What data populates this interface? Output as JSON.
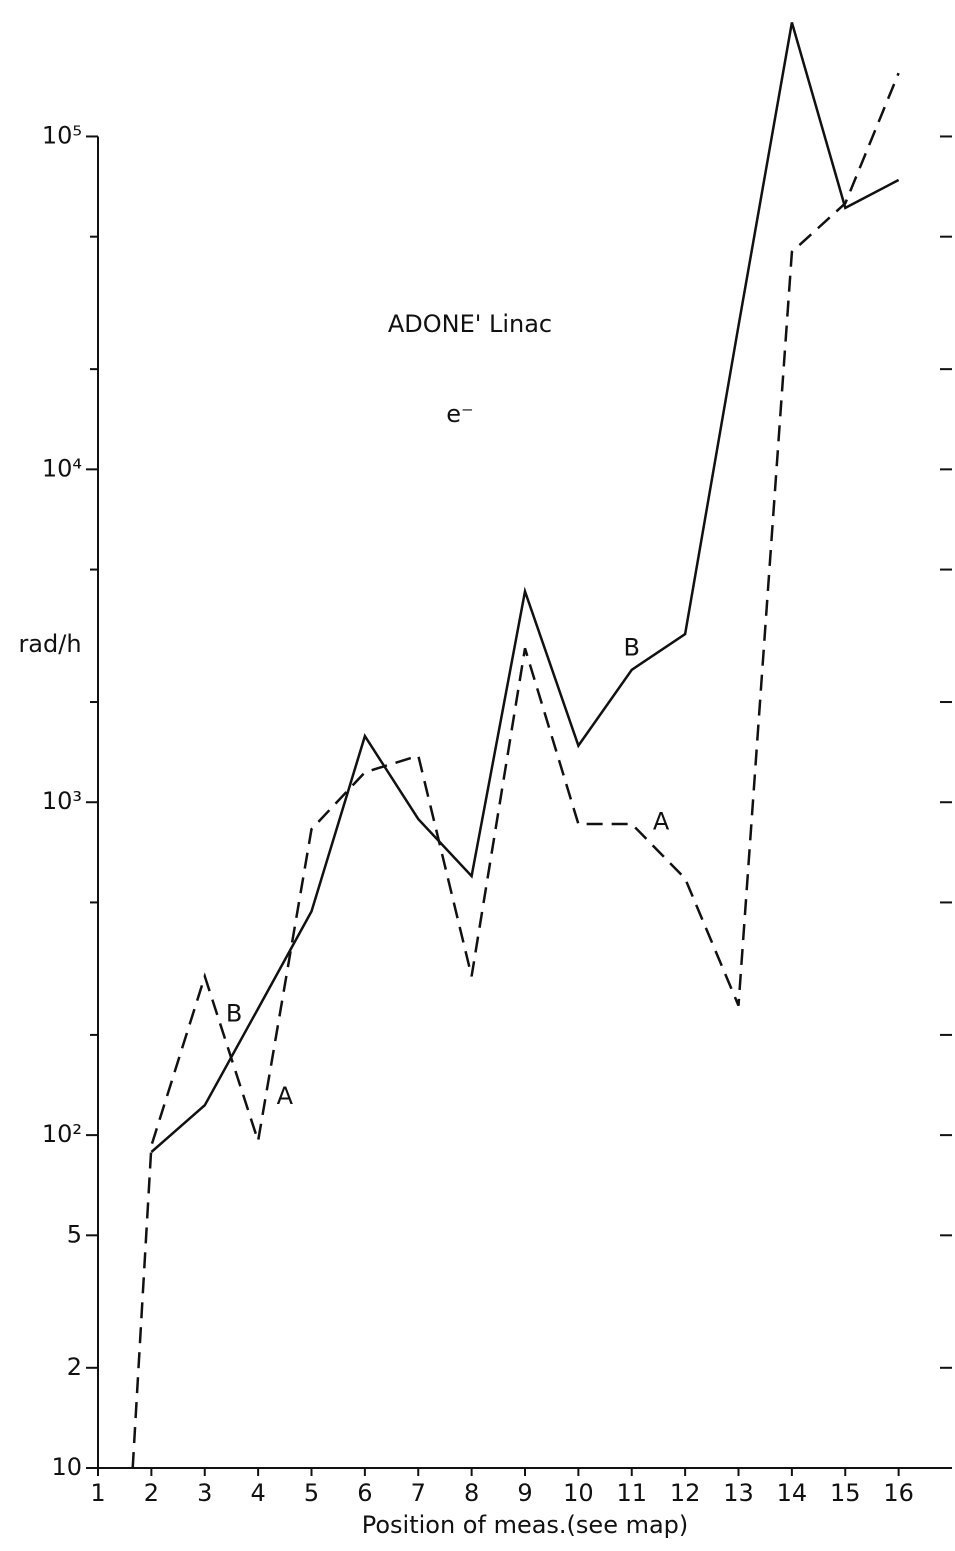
{
  "chart_data": {
    "type": "line",
    "title": "ADONE' Linac",
    "subtitle": "e⁻",
    "x_label": "Position of meas.(see map)",
    "y_label": "rad/h",
    "log_y": true,
    "xlim": [
      1,
      17
    ],
    "ylim": [
      10,
      250000
    ],
    "xticks": [
      1,
      2,
      3,
      4,
      5,
      6,
      7,
      8,
      9,
      10,
      11,
      12,
      13,
      14,
      15,
      16
    ],
    "yticks": [
      10,
      {
        "value": 20,
        "label": "2"
      },
      {
        "value": 50,
        "label": "5"
      },
      {
        "value": 100,
        "label": "10²"
      },
      {
        "value": 1000,
        "label": "10³"
      },
      {
        "value": 10000,
        "label": "10⁴"
      },
      {
        "value": 100000,
        "label": "10⁵"
      }
    ],
    "yminor": [
      200,
      500,
      2000,
      5000,
      20000,
      50000
    ],
    "series": [
      {
        "name": "A",
        "color": "#111111",
        "linestyle": "dashed",
        "x": [
          1.65,
          2,
          3,
          4,
          5,
          6,
          7,
          8,
          9,
          10,
          11,
          12,
          13,
          14,
          15,
          16
        ],
        "values": [
          10,
          93,
          300,
          96,
          830,
          1230,
          1380,
          300,
          2900,
          860,
          860,
          590,
          245,
          45000,
          63000,
          155000
        ]
      },
      {
        "name": "B",
        "color": "#111111",
        "linestyle": "solid",
        "x": [
          2,
          3,
          4,
          5,
          6,
          7,
          8,
          9,
          10,
          11,
          12,
          13,
          14,
          15,
          16
        ],
        "values": [
          89,
          123,
          240,
          470,
          1580,
          890,
          600,
          4300,
          1480,
          2500,
          3200,
          27000,
          220000,
          61000,
          74000
        ]
      }
    ],
    "annotations": [
      {
        "text": "B",
        "x": 11,
        "y": 2900
      },
      {
        "text": "A",
        "x": 11.55,
        "y": 870
      },
      {
        "text": "B",
        "x": 3.55,
        "y": 230
      },
      {
        "text": "A",
        "x": 4.5,
        "y": 130
      }
    ]
  }
}
